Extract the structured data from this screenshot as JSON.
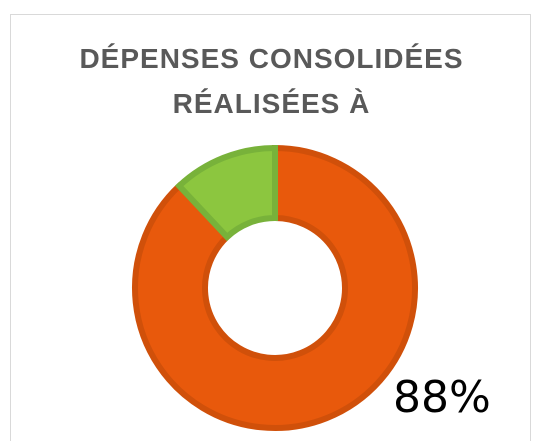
{
  "chart_data": {
    "type": "pie",
    "title_lines": [
      "DÉPENSES CONSOLIDÉES",
      "RÉALISÉES À"
    ],
    "slices": [
      {
        "value": 88,
        "color": "#e8590c",
        "stroke": "#d0500a"
      },
      {
        "value": 12,
        "color": "#8cc63f",
        "stroke": "#78b23a"
      }
    ],
    "data_label": "88%"
  }
}
